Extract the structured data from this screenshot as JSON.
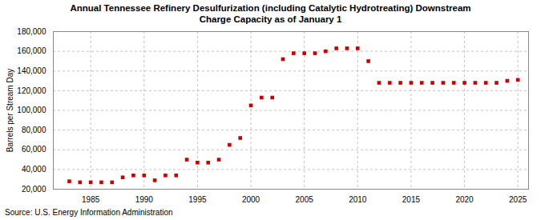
{
  "chart_data": {
    "type": "scatter",
    "title": "Annual Tennessee Refinery Desulfurization (including Catalytic Hydrotreating) Downstream\nCharge Capacity as of January 1",
    "ylabel": "Barrels per Stream Day",
    "source": "Source: U.S. Energy Information Administration",
    "x": [
      1983,
      1984,
      1985,
      1986,
      1987,
      1988,
      1989,
      1990,
      1991,
      1992,
      1993,
      1994,
      1995,
      1996,
      1997,
      1998,
      1999,
      2000,
      2001,
      2002,
      2003,
      2004,
      2005,
      2006,
      2007,
      2008,
      2009,
      2010,
      2011,
      2012,
      2013,
      2014,
      2015,
      2016,
      2017,
      2018,
      2019,
      2020,
      2021,
      2022,
      2023,
      2024,
      2025
    ],
    "values": [
      28000,
      27000,
      27000,
      27000,
      27000,
      32000,
      34000,
      34000,
      29000,
      34000,
      34000,
      50000,
      47000,
      47000,
      50000,
      65000,
      72000,
      105000,
      113000,
      113000,
      152000,
      158000,
      158000,
      158000,
      160000,
      163000,
      163000,
      163000,
      150000,
      128000,
      128000,
      128000,
      128000,
      128000,
      128000,
      128000,
      128000,
      128000,
      128000,
      128000,
      128000,
      130000,
      131000
    ],
    "color": "#cc0000",
    "marker": "square",
    "xlim": [
      1981.5,
      2026
    ],
    "xticks": [
      1985,
      1990,
      1995,
      2000,
      2005,
      2010,
      2015,
      2020,
      2025
    ],
    "ylim": [
      20000,
      180000
    ],
    "yticks": [
      {
        "value": 20000,
        "label": "20,000"
      },
      {
        "value": 40000,
        "label": "40,000"
      },
      {
        "value": 60000,
        "label": "60,000"
      },
      {
        "value": 80000,
        "label": "80,000"
      },
      {
        "value": 100000,
        "label": "100,000"
      },
      {
        "value": 120000,
        "label": "120,000"
      },
      {
        "value": 140000,
        "label": "140,000"
      },
      {
        "value": 160000,
        "label": "160,000"
      },
      {
        "value": 180000,
        "label": "180,000"
      }
    ],
    "grid": true
  }
}
